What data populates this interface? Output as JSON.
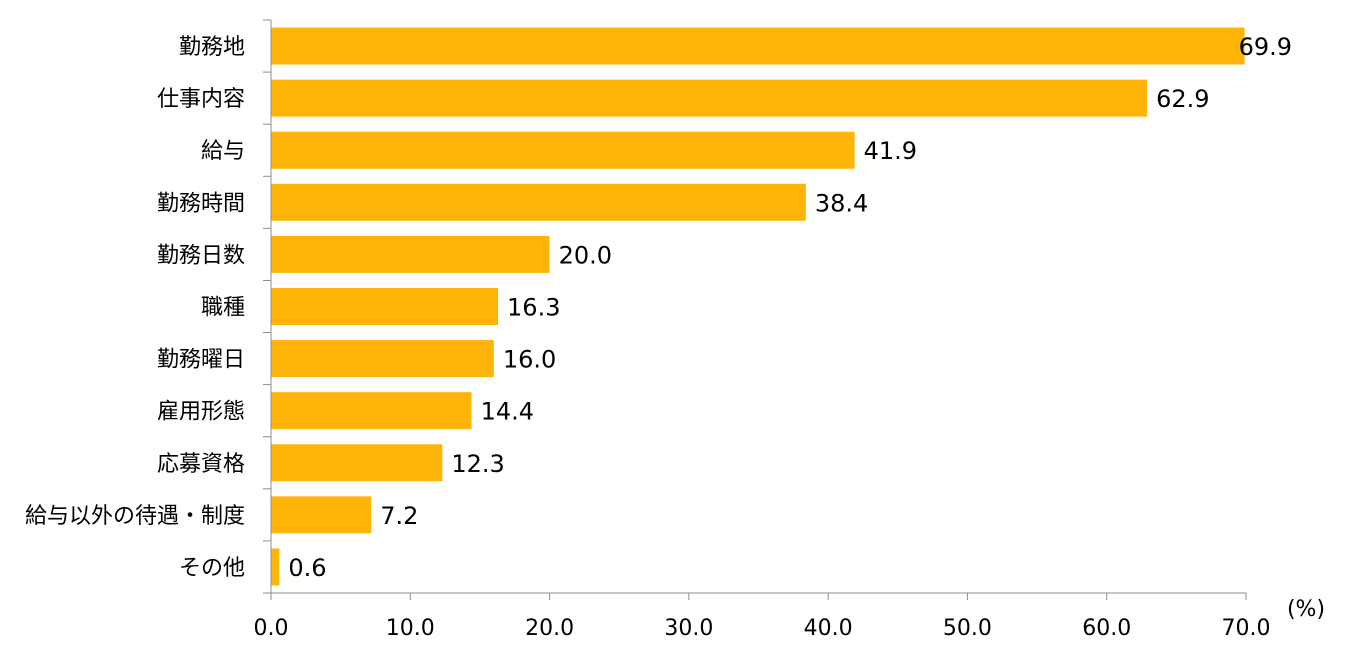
{
  "chart_data": {
    "type": "bar",
    "orientation": "horizontal",
    "categories": [
      "勤務地",
      "仕事内容",
      "給与",
      "勤務時間",
      "勤務日数",
      "職種",
      "勤務曜日",
      "雇用形態",
      "応募資格",
      "給与以外の待遇・制度",
      "その他"
    ],
    "values": [
      69.9,
      62.9,
      41.9,
      38.4,
      20.0,
      16.3,
      16.0,
      14.4,
      12.3,
      7.2,
      0.6
    ],
    "value_labels": [
      "69.9",
      "62.9",
      "41.9",
      "38.4",
      "20.0",
      "16.3",
      "16.0",
      "14.4",
      "12.3",
      "7.2",
      "0.6"
    ],
    "xlim": [
      0,
      70
    ],
    "x_ticks": [
      "0.0",
      "10.0",
      "20.0",
      "30.0",
      "40.0",
      "50.0",
      "60.0",
      "70.0"
    ],
    "x_unit": "(%)",
    "bar_color": "#FFB40A",
    "grid": false,
    "legend": "none"
  }
}
